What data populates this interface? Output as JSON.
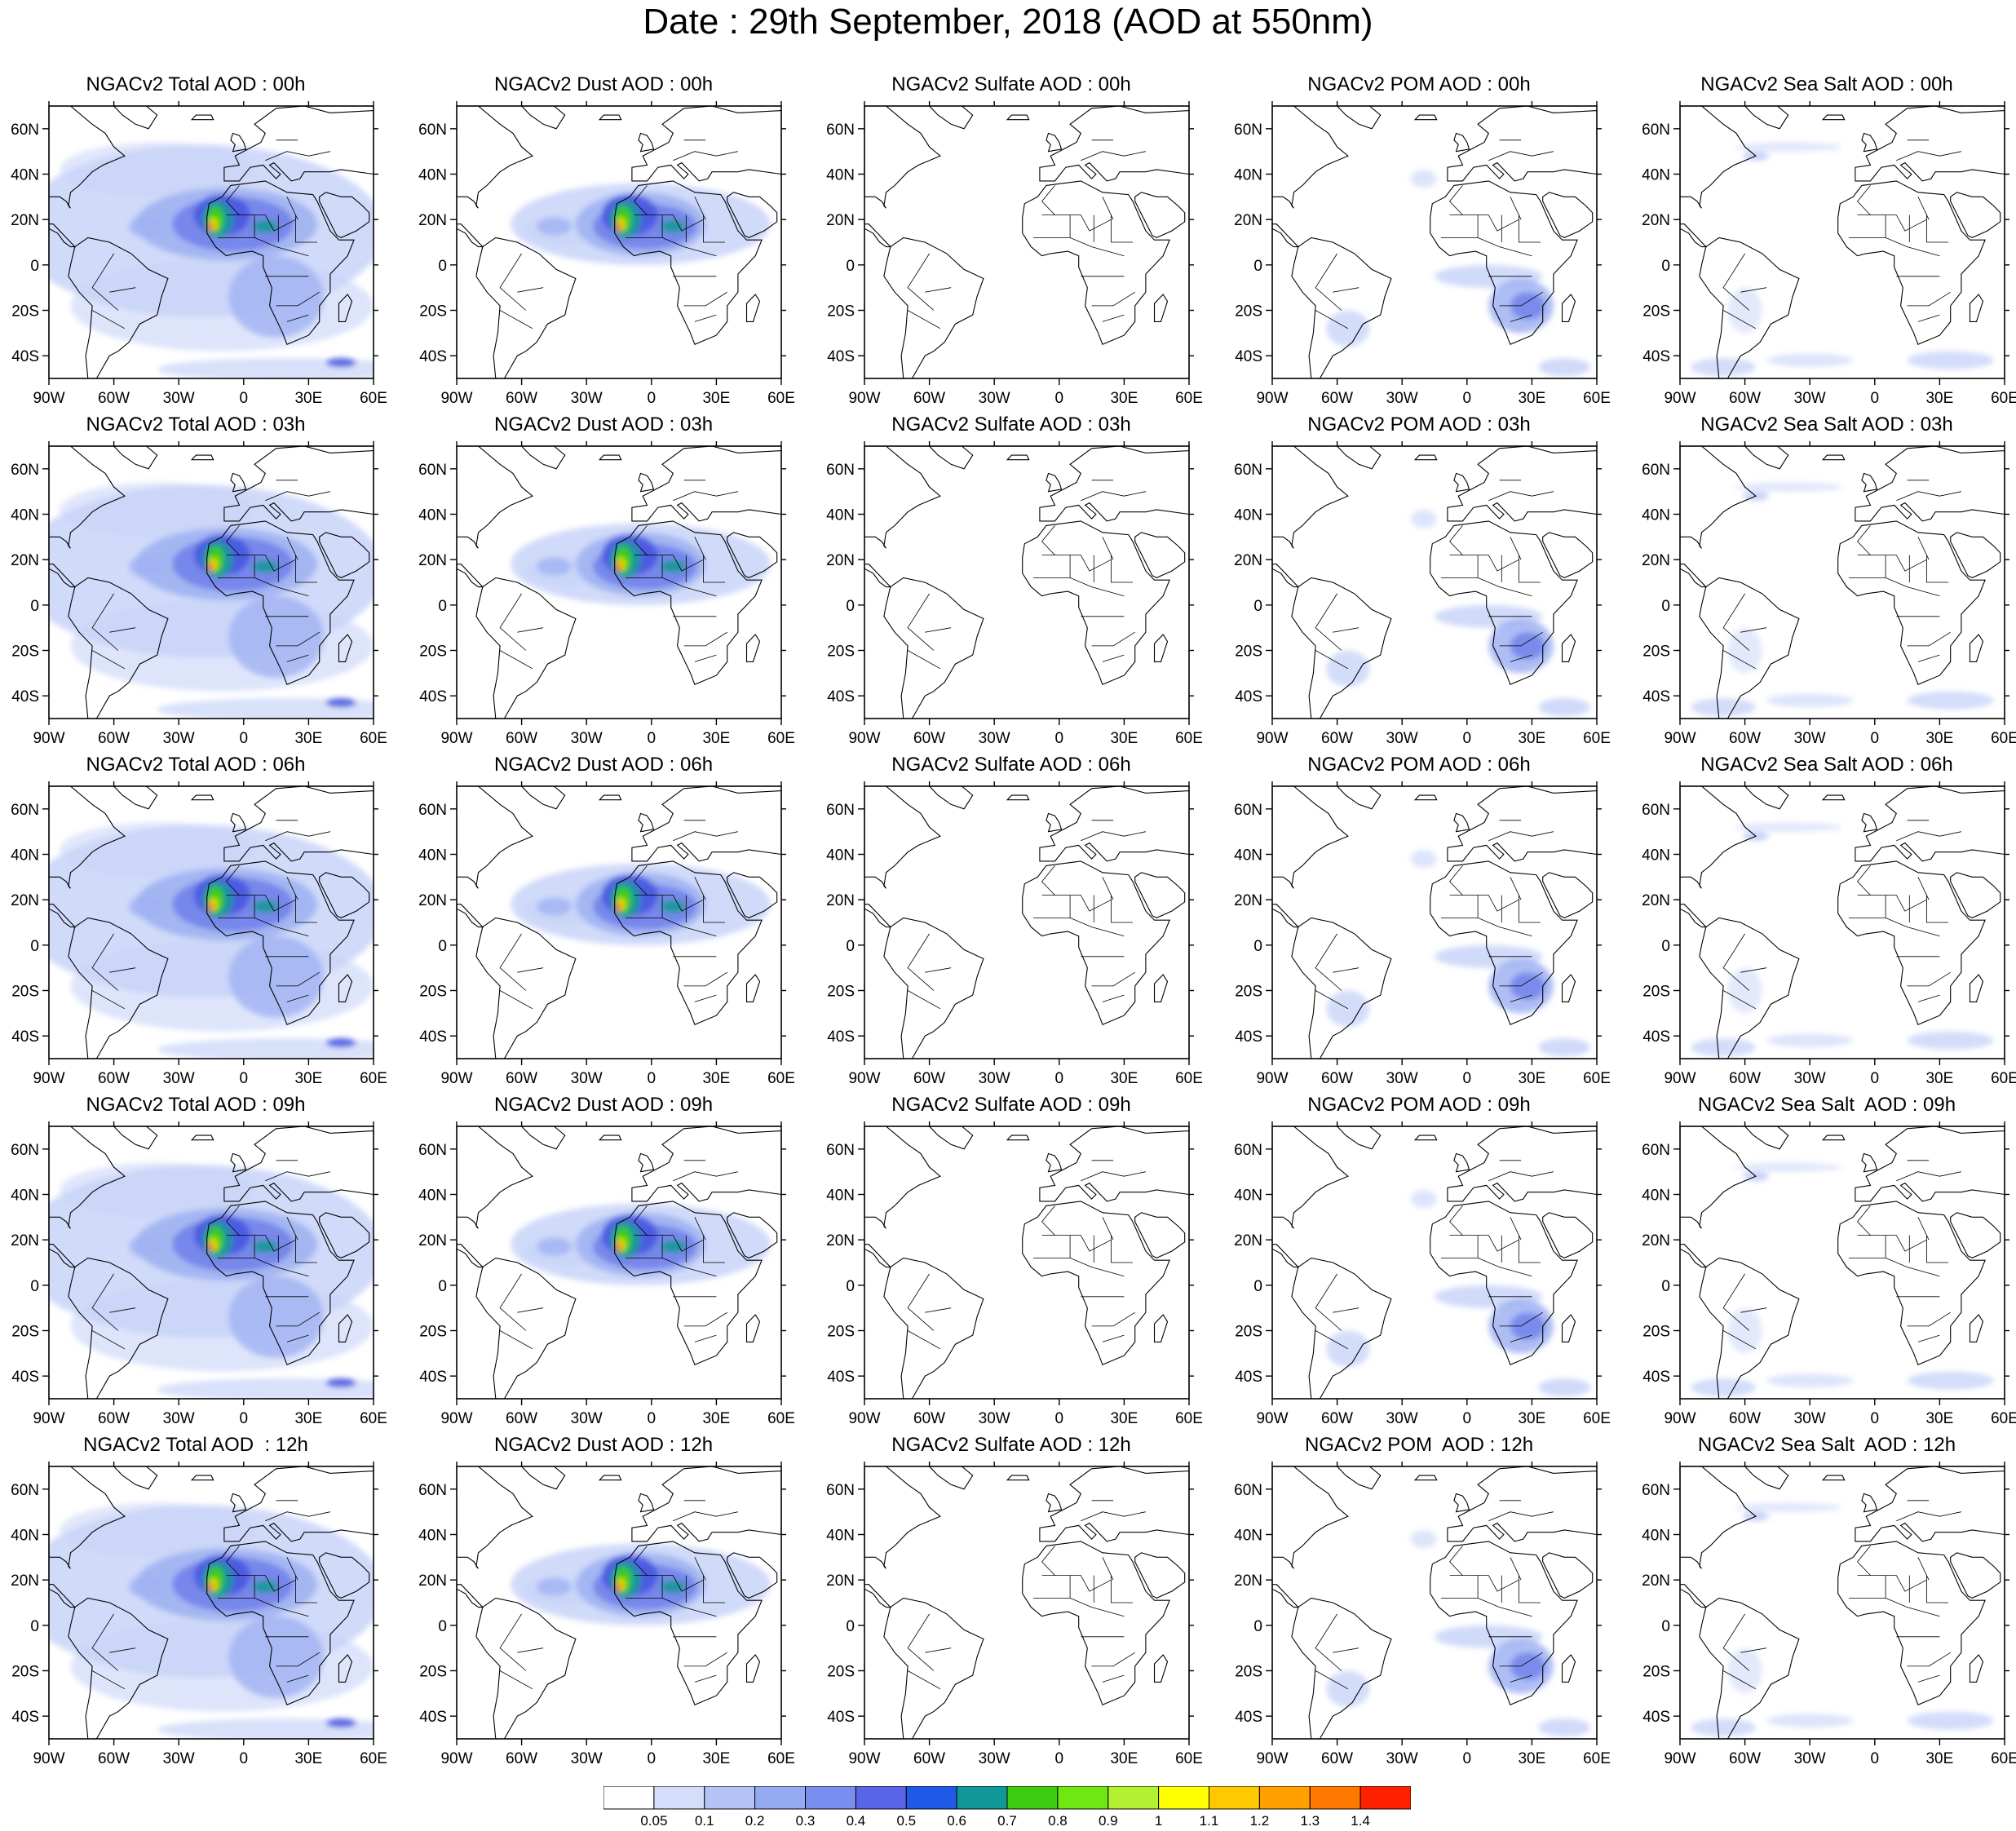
{
  "title": "Date : 29th September, 2018 (AOD at 550nm)",
  "map": {
    "lat_labels": [
      "60N",
      "40N",
      "20N",
      "0",
      "20S",
      "40S"
    ],
    "lon_labels": [
      "90W",
      "60W",
      "30W",
      "0",
      "30E",
      "60E"
    ],
    "lat_values": [
      60,
      40,
      20,
      0,
      -20,
      -40
    ],
    "lon_values": [
      -90,
      -60,
      -30,
      0,
      30,
      60
    ],
    "lat_range": [
      -50,
      70
    ],
    "lon_range": [
      -90,
      60
    ]
  },
  "columns": [
    "Total",
    "Dust",
    "Sulfate",
    "POM",
    "Sea Salt"
  ],
  "hours": [
    "00h",
    "03h",
    "06h",
    "09h",
    "12h"
  ],
  "panels": [
    [
      "NGACv2 Total AOD : 00h",
      "NGACv2 Dust AOD : 00h",
      "NGACv2 Sulfate AOD : 00h",
      "NGACv2 POM AOD : 00h",
      "NGACv2 Sea Salt AOD : 00h"
    ],
    [
      "NGACv2 Total AOD : 03h",
      "NGACv2 Dust AOD : 03h",
      "NGACv2 Sulfate AOD : 03h",
      "NGACv2 POM AOD : 03h",
      "NGACv2 Sea Salt AOD : 03h"
    ],
    [
      "NGACv2 Total AOD : 06h",
      "NGACv2 Dust AOD : 06h",
      "NGACv2 Sulfate AOD : 06h",
      "NGACv2 POM AOD : 06h",
      "NGACv2 Sea Salt AOD : 06h"
    ],
    [
      "NGACv2 Total AOD : 09h",
      "NGACv2 Dust AOD : 09h",
      "NGACv2 Sulfate AOD : 09h",
      "NGACv2 POM AOD : 09h",
      "NGACv2 Sea Salt  AOD : 09h"
    ],
    [
      "NGACv2 Total AOD  : 12h",
      "NGACv2 Dust AOD : 12h",
      "NGACv2 Sulfate AOD : 12h",
      "NGACv2 POM  AOD : 12h",
      "NGACv2 Sea Salt  AOD : 12h"
    ]
  ],
  "colorbar": {
    "labels": [
      "0.05",
      "0.1",
      "0.2",
      "0.3",
      "0.4",
      "0.5",
      "0.6",
      "0.7",
      "0.8",
      "0.9",
      "1",
      "1.1",
      "1.2",
      "1.3",
      "1.4"
    ],
    "colors": [
      "#ffffff",
      "#d4defa",
      "#b4c4f6",
      "#94aaf2",
      "#7a8ef0",
      "#5a64e6",
      "#1e5ae6",
      "#109898",
      "#3ccc10",
      "#6ee810",
      "#b4f032",
      "#ffff00",
      "#ffc800",
      "#ffa000",
      "#ff7800",
      "#ff2000"
    ]
  },
  "palette": {
    "light": "#c8d4f8",
    "medium": "#a0b2f2",
    "blue": "#7282ea",
    "deep": "#4a5ae0",
    "cyan": "#109898",
    "green": "#3ccc10",
    "yellow": "#e6e600",
    "orange": "#ff8000",
    "red": "#ff2000"
  }
}
